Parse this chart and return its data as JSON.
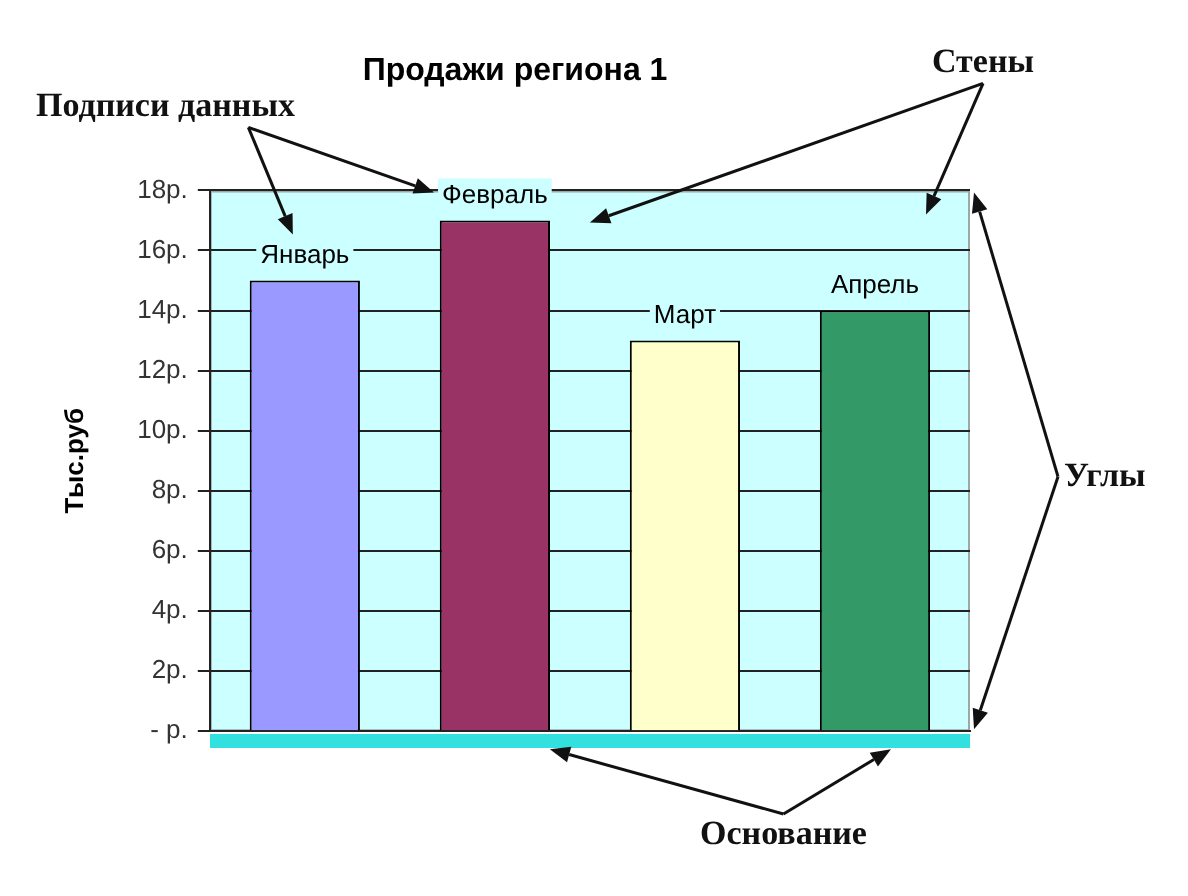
{
  "chart_data": {
    "type": "bar",
    "title": "Продажи региона 1",
    "ylabel": "Тыс.руб",
    "categories": [
      null,
      null,
      null,
      null
    ],
    "values": [
      15,
      17,
      13,
      14
    ],
    "colors": [
      "#9999ff",
      "#993366",
      "#ffffcc",
      "#339966"
    ],
    "value_labels": [
      "Январь",
      "Февраль",
      "Март",
      "Апрель"
    ],
    "ylim": [
      0,
      18
    ],
    "yticks": [
      {
        "value": 0,
        "label": "- р."
      },
      {
        "value": 2,
        "label": "2р."
      },
      {
        "value": 4,
        "label": "4р."
      },
      {
        "value": 6,
        "label": "6р."
      },
      {
        "value": 8,
        "label": "8р."
      },
      {
        "value": 10,
        "label": "10р."
      },
      {
        "value": 12,
        "label": "12р."
      },
      {
        "value": 14,
        "label": "14р."
      },
      {
        "value": 16,
        "label": "16р."
      },
      {
        "value": 18,
        "label": "18р."
      }
    ],
    "grid": "y",
    "annotations": [
      "Подписи данных",
      "Стены",
      "Углы",
      "Основание"
    ]
  }
}
